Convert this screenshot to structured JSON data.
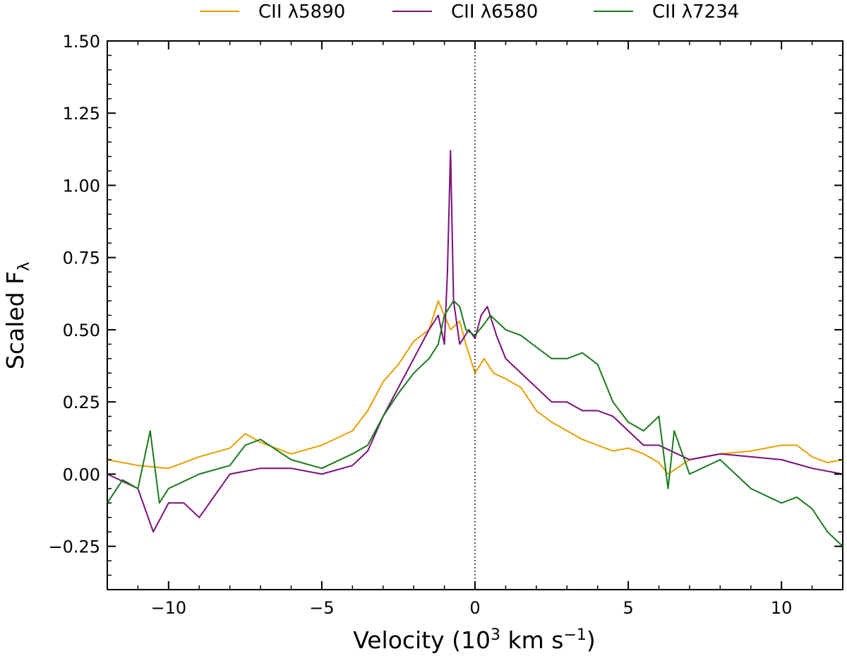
{
  "chart_data": {
    "type": "line",
    "title": "",
    "xlabel": "Velocity (10",
    "xlabel_exp": "3",
    "xlabel_mid": " km s",
    "xlabel_unit_exp": "−1",
    "xlabel_end": ")",
    "ylabel": "Scaled F",
    "ylabel_sub": "λ",
    "xlim": [
      -12,
      12
    ],
    "ylim": [
      -0.4,
      1.5
    ],
    "x_ticks": [
      -10,
      -5,
      0,
      5,
      10
    ],
    "x_tick_labels": [
      "−10",
      "−5",
      "0",
      "5",
      "10"
    ],
    "y_ticks": [
      -0.25,
      0,
      0.25,
      0.5,
      0.75,
      1.0,
      1.25,
      1.5
    ],
    "y_tick_labels": [
      "−0.25",
      "0.00",
      "0.25",
      "0.50",
      "0.75",
      "1.00",
      "1.25",
      "1.50"
    ],
    "grid": false,
    "legend_position": "top (outside plot)",
    "reference_line": {
      "x": 0,
      "style": "dotted",
      "color": "#000000"
    },
    "series": [
      {
        "name": "CII λ5890",
        "color": "#e69f00",
        "x": [
          -12,
          -11,
          -10,
          -9,
          -8,
          -7.5,
          -7,
          -6,
          -5,
          -4,
          -3.5,
          -3,
          -2.5,
          -2,
          -1.5,
          -1.2,
          -1,
          -0.8,
          -0.5,
          -0.3,
          0,
          0.3,
          0.6,
          1,
          1.5,
          2,
          2.5,
          3,
          3.5,
          4,
          4.5,
          5,
          5.5,
          6,
          6.3,
          7,
          8,
          9,
          10,
          10.5,
          11,
          11.5,
          12
        ],
        "y": [
          0.05,
          0.03,
          0.02,
          0.06,
          0.09,
          0.14,
          0.11,
          0.07,
          0.1,
          0.15,
          0.22,
          0.32,
          0.38,
          0.46,
          0.5,
          0.6,
          0.55,
          0.5,
          0.53,
          0.45,
          0.35,
          0.4,
          0.35,
          0.33,
          0.3,
          0.22,
          0.18,
          0.15,
          0.12,
          0.1,
          0.08,
          0.09,
          0.07,
          0.04,
          0.0,
          0.05,
          0.07,
          0.08,
          0.1,
          0.1,
          0.06,
          0.04,
          0.05
        ]
      },
      {
        "name": "CII λ6580",
        "color": "#7b0e7b",
        "x": [
          -12,
          -11,
          -10.5,
          -10,
          -9.5,
          -9,
          -8,
          -7,
          -6,
          -5,
          -4,
          -3.5,
          -3,
          -2.5,
          -2,
          -1.5,
          -1.2,
          -1,
          -0.9,
          -0.8,
          -0.7,
          -0.5,
          -0.2,
          0,
          0.2,
          0.4,
          0.7,
          1,
          1.5,
          2,
          2.5,
          3,
          3.5,
          4,
          4.5,
          5,
          5.5,
          6,
          7,
          8,
          9,
          10,
          11,
          12
        ],
        "y": [
          0.0,
          -0.05,
          -0.2,
          -0.1,
          -0.1,
          -0.15,
          0.0,
          0.02,
          0.02,
          0.0,
          0.03,
          0.08,
          0.2,
          0.3,
          0.4,
          0.5,
          0.55,
          0.45,
          0.7,
          1.12,
          0.6,
          0.45,
          0.5,
          0.47,
          0.55,
          0.58,
          0.48,
          0.4,
          0.35,
          0.3,
          0.25,
          0.25,
          0.22,
          0.22,
          0.2,
          0.15,
          0.1,
          0.1,
          0.05,
          0.07,
          0.06,
          0.05,
          0.02,
          0.0
        ]
      },
      {
        "name": "CII λ7234",
        "color": "#1a7a1a",
        "x": [
          -12,
          -11.5,
          -11,
          -10.6,
          -10.3,
          -10,
          -9,
          -8,
          -7.5,
          -7,
          -6,
          -5,
          -4,
          -3.5,
          -3,
          -2.5,
          -2,
          -1.5,
          -1.2,
          -1,
          -0.7,
          -0.5,
          -0.3,
          0,
          0.3,
          0.5,
          1,
          1.5,
          2,
          2.5,
          3,
          3.5,
          4,
          4.5,
          5,
          5.5,
          6,
          6.3,
          6.5,
          7,
          8,
          9,
          10,
          10.5,
          11,
          11.5,
          12
        ],
        "y": [
          -0.1,
          -0.02,
          -0.05,
          0.15,
          -0.1,
          -0.05,
          0.0,
          0.03,
          0.1,
          0.12,
          0.05,
          0.02,
          0.07,
          0.1,
          0.2,
          0.28,
          0.35,
          0.4,
          0.45,
          0.55,
          0.6,
          0.58,
          0.5,
          0.48,
          0.52,
          0.55,
          0.5,
          0.48,
          0.44,
          0.4,
          0.4,
          0.42,
          0.38,
          0.25,
          0.18,
          0.15,
          0.2,
          -0.05,
          0.15,
          0.0,
          0.05,
          -0.05,
          -0.1,
          -0.08,
          -0.12,
          -0.2,
          -0.25
        ]
      }
    ]
  }
}
